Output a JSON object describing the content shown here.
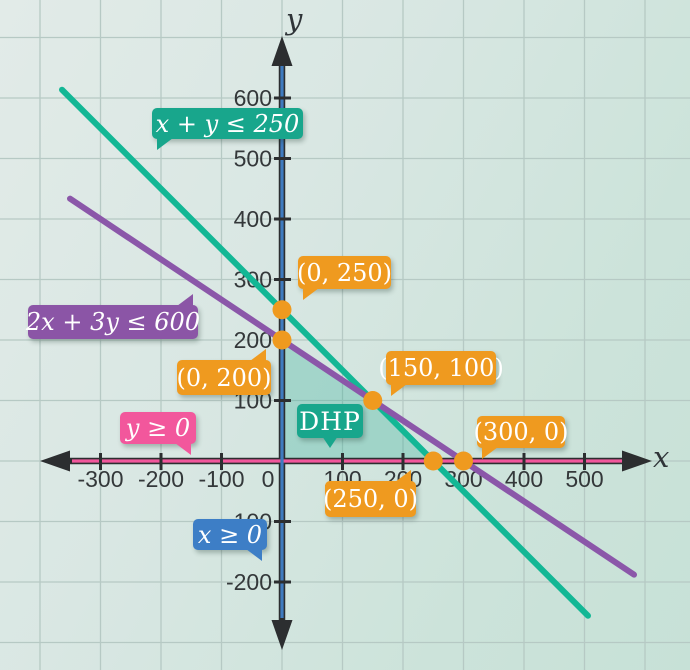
{
  "chart_data": {
    "type": "line",
    "description": "Linear programming feasible region graph",
    "xlabel": "x",
    "ylabel": "y",
    "x_ticks": [
      -300,
      -200,
      -100,
      0,
      100,
      200,
      300,
      400,
      500
    ],
    "y_ticks": [
      600,
      500,
      400,
      300,
      200,
      100,
      -100,
      -200
    ],
    "xlim": [
      -400,
      620
    ],
    "ylim": [
      -330,
      700
    ],
    "grid": true,
    "grid_step": 100,
    "lines": [
      {
        "name": "x + y = 250",
        "color": "#13b795",
        "points": [
          [
            0,
            250
          ],
          [
            250,
            0
          ]
        ]
      },
      {
        "name": "2x + 3y = 600",
        "color": "#8b57a9",
        "points": [
          [
            0,
            200
          ],
          [
            300,
            0
          ]
        ]
      }
    ],
    "axis_overlays": [
      {
        "name": "y = 0",
        "color": "#f2579c"
      },
      {
        "name": "x = 0",
        "color": "#3f7bbf"
      }
    ],
    "feasible_region": {
      "label": "DHP",
      "vertices": [
        [
          0,
          0
        ],
        [
          0,
          200
        ],
        [
          150,
          100
        ],
        [
          250,
          0
        ]
      ],
      "fill": "#14a58c"
    },
    "points": [
      [
        0,
        250
      ],
      [
        0,
        200
      ],
      [
        150,
        100
      ],
      [
        250,
        0
      ],
      [
        300,
        0
      ]
    ],
    "point_color": "#ef9a1f"
  },
  "labels": {
    "constraint1": "x + y ≤ 250",
    "constraint2": "2x + 3y ≤ 600",
    "constraint3": "y ≥ 0",
    "constraint4": "x ≥ 0",
    "region": "DHP",
    "p_0_250": "(0, 250)",
    "p_0_200": "(0, 200)",
    "p_150_100": "(150, 100)",
    "p_250_0": "(250, 0)",
    "p_300_0": "(300, 0)",
    "x_axis": "x",
    "y_axis": "y"
  },
  "colors": {
    "teal": "#18a68c",
    "purple": "#8b55a6",
    "pink": "#f2579c",
    "blue": "#3d7ec6",
    "orange": "#ef9a1f",
    "axis": "#2c2e30",
    "tick_text": "#34383a",
    "grid_line": "#b6c9c4"
  }
}
